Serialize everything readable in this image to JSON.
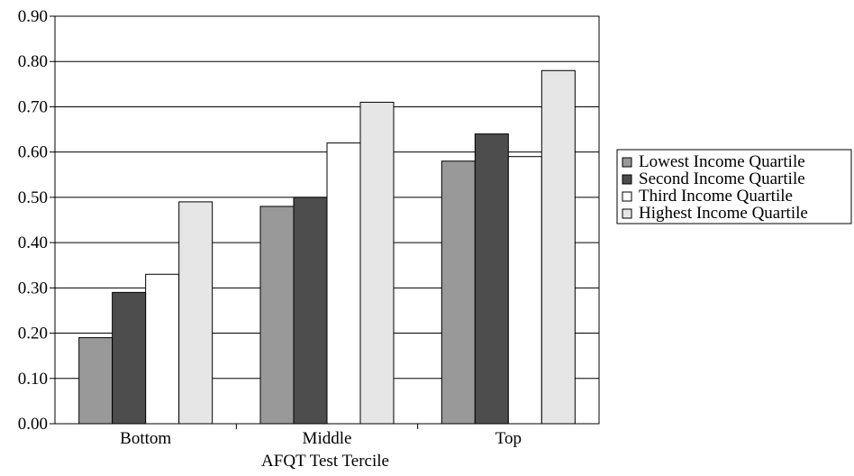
{
  "chart_data": {
    "type": "bar",
    "title": "",
    "xlabel": "AFQT Test Tercile",
    "ylabel": "",
    "categories": [
      "Bottom",
      "Middle",
      "Top"
    ],
    "ylim": [
      0,
      0.9
    ],
    "yticks": [
      "0.00",
      "0.10",
      "0.20",
      "0.30",
      "0.40",
      "0.50",
      "0.60",
      "0.70",
      "0.80",
      "0.90"
    ],
    "grid": true,
    "legend_position": "right",
    "series": [
      {
        "name": "Lowest Income Quartile",
        "values": [
          0.19,
          0.48,
          0.58
        ],
        "color": "#999999"
      },
      {
        "name": "Second Income Quartile",
        "values": [
          0.29,
          0.5,
          0.64
        ],
        "color": "#4d4d4d"
      },
      {
        "name": "Third Income Quartile",
        "values": [
          0.33,
          0.62,
          0.59
        ],
        "color": "#ffffff"
      },
      {
        "name": "Highest Income Quartile",
        "values": [
          0.49,
          0.71,
          0.78
        ],
        "color": "#e6e6e6"
      }
    ]
  }
}
